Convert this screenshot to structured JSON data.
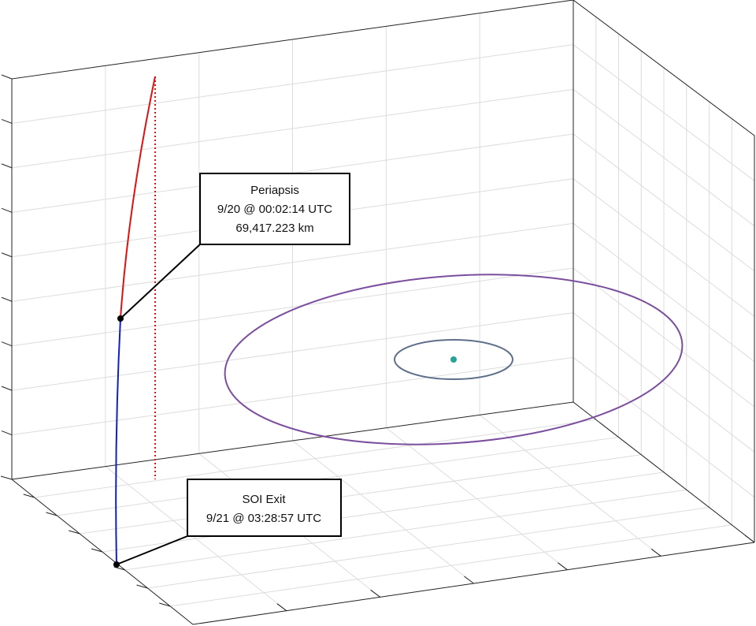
{
  "annotations": [
    {
      "lines": [
        "Periapsis",
        "9/20 @ 00:02:14 UTC",
        "69,417.223 km"
      ]
    },
    {
      "lines": [
        "SOI Exit",
        "9/21 @ 03:28:57 UTC"
      ]
    }
  ]
}
